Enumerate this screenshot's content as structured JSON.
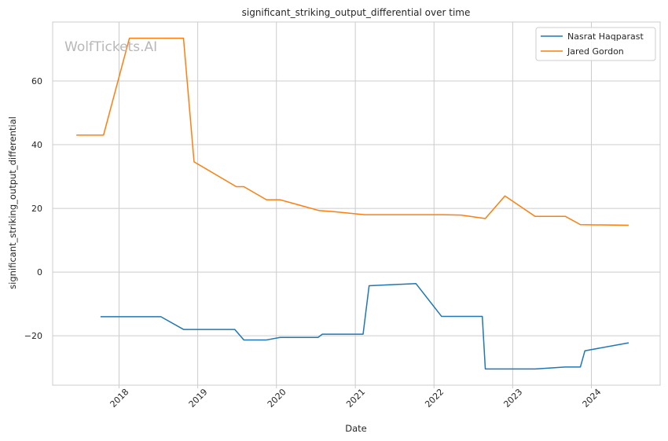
{
  "chart_data": {
    "type": "line",
    "title": "significant_striking_output_differential over time",
    "xlabel": "Date",
    "ylabel": "significant_striking_output_differential",
    "watermark": "WolfTickets.AI",
    "x_axis": "date",
    "xlim": [
      "2017-02-27",
      "2024-11-15"
    ],
    "ylim": [
      -35.5,
      78.5
    ],
    "x_ticks": [
      {
        "date": "2018-01-01",
        "label": "2018"
      },
      {
        "date": "2019-01-01",
        "label": "2019"
      },
      {
        "date": "2020-01-01",
        "label": "2020"
      },
      {
        "date": "2021-01-01",
        "label": "2021"
      },
      {
        "date": "2022-01-01",
        "label": "2022"
      },
      {
        "date": "2023-01-01",
        "label": "2023"
      },
      {
        "date": "2024-01-01",
        "label": "2024"
      }
    ],
    "y_ticks": [
      {
        "value": -20,
        "label": "−20"
      },
      {
        "value": 0,
        "label": "0"
      },
      {
        "value": 20,
        "label": "20"
      },
      {
        "value": 40,
        "label": "40"
      },
      {
        "value": 60,
        "label": "60"
      }
    ],
    "grid": true,
    "legend": "top-right",
    "series": [
      {
        "name": "Nasrat Haqparast",
        "color": "#1f77b4",
        "points": [
          [
            "2017-10-07",
            -14.0
          ],
          [
            "2018-07-14",
            -14.0
          ],
          [
            "2018-10-27",
            -18.0
          ],
          [
            "2019-06-22",
            -18.0
          ],
          [
            "2019-08-03",
            -21.3
          ],
          [
            "2019-11-16",
            -21.3
          ],
          [
            "2020-01-18",
            -20.5
          ],
          [
            "2020-07-12",
            -20.5
          ],
          [
            "2020-08-01",
            -19.5
          ],
          [
            "2021-02-06",
            -19.5
          ],
          [
            "2021-03-06",
            -4.3
          ],
          [
            "2021-10-09",
            -3.6
          ],
          [
            "2022-02-05",
            -13.9
          ],
          [
            "2022-08-13",
            -13.9
          ],
          [
            "2022-08-27",
            -30.4
          ],
          [
            "2023-04-15",
            -30.4
          ],
          [
            "2023-09-02",
            -29.8
          ],
          [
            "2023-11-11",
            -29.8
          ],
          [
            "2023-12-02",
            -24.7
          ],
          [
            "2024-06-22",
            -22.2
          ]
        ]
      },
      {
        "name": "Jared Gordon",
        "color": "#ff7f0e",
        "points": [
          [
            "2017-06-17",
            43.0
          ],
          [
            "2017-10-21",
            43.0
          ],
          [
            "2018-02-18",
            73.4
          ],
          [
            "2018-10-27",
            73.4
          ],
          [
            "2018-12-15",
            34.6
          ],
          [
            "2019-06-29",
            26.8
          ],
          [
            "2019-08-03",
            26.8
          ],
          [
            "2019-11-16",
            22.7
          ],
          [
            "2020-01-18",
            22.7
          ],
          [
            "2020-07-18",
            19.3
          ],
          [
            "2020-09-19",
            19.0
          ],
          [
            "2021-02-13",
            18.0
          ],
          [
            "2022-02-12",
            18.0
          ],
          [
            "2022-05-07",
            17.9
          ],
          [
            "2022-08-27",
            16.8
          ],
          [
            "2022-11-26",
            23.9
          ],
          [
            "2023-04-15",
            17.5
          ],
          [
            "2023-09-02",
            17.5
          ],
          [
            "2023-11-11",
            14.9
          ],
          [
            "2024-06-22",
            14.7
          ]
        ]
      }
    ]
  }
}
